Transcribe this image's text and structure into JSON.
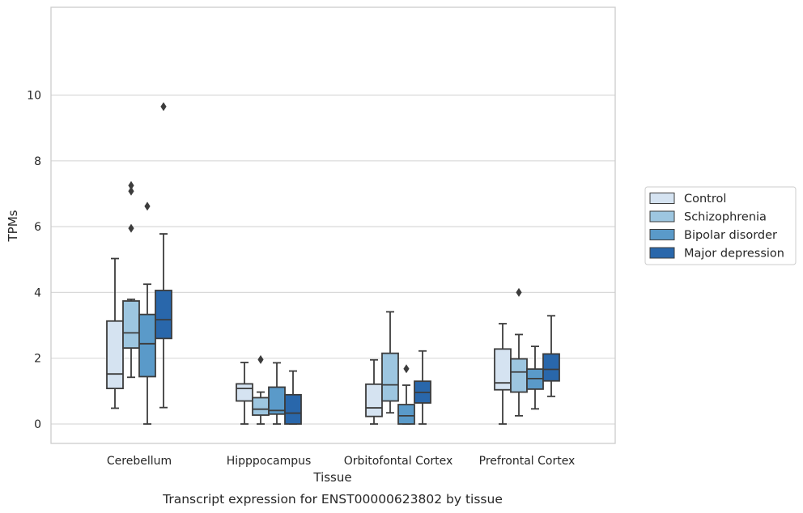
{
  "chart_data": {
    "type": "box",
    "ylabel": "TPMs",
    "xlabel": "Tissue",
    "caption": "Transcript expression for ENST00000623802 by tissue",
    "ylim": [
      -0.45,
      10.15
    ],
    "yticks": [
      "0",
      "2",
      "4",
      "6",
      "8",
      "10"
    ],
    "grid": "horizontal",
    "legend_position": "right",
    "categories": [
      "Cerebellum",
      "Hipppocampus",
      "Orbitofontal Cortex",
      "Prefrontal Cortex"
    ],
    "series": [
      {
        "name": "Control",
        "color": "#d5e3f1",
        "boxes": [
          {
            "whislo": 0.48,
            "q1": 1.08,
            "med": 1.52,
            "q3": 3.13,
            "whishi": 5.03,
            "fliers": []
          },
          {
            "whislo": 0.0,
            "q1": 0.7,
            "med": 1.08,
            "q3": 1.22,
            "whishi": 1.87,
            "fliers": []
          },
          {
            "whislo": 0.0,
            "q1": 0.23,
            "med": 0.49,
            "q3": 1.21,
            "whishi": 1.95,
            "fliers": []
          },
          {
            "whislo": 0.0,
            "q1": 1.04,
            "med": 1.25,
            "q3": 2.28,
            "whishi": 3.05,
            "fliers": []
          }
        ]
      },
      {
        "name": "Schizophrenia",
        "color": "#9dc6e0",
        "boxes": [
          {
            "whislo": 1.42,
            "q1": 2.31,
            "med": 2.77,
            "q3": 3.74,
            "whishi": 3.79,
            "fliers": [
              5.95,
              7.08,
              7.25
            ]
          },
          {
            "whislo": 0.0,
            "q1": 0.27,
            "med": 0.45,
            "q3": 0.8,
            "whishi": 0.97,
            "fliers": [
              1.96
            ]
          },
          {
            "whislo": 0.34,
            "q1": 0.7,
            "med": 1.19,
            "q3": 2.15,
            "whishi": 3.41,
            "fliers": []
          },
          {
            "whislo": 0.25,
            "q1": 0.97,
            "med": 1.58,
            "q3": 1.98,
            "whishi": 2.72,
            "fliers": [
              4.0
            ]
          }
        ]
      },
      {
        "name": "Bipolar disorder",
        "color": "#5a9ac9",
        "boxes": [
          {
            "whislo": 0.0,
            "q1": 1.44,
            "med": 2.44,
            "q3": 3.33,
            "whishi": 4.25,
            "fliers": [
              6.62
            ]
          },
          {
            "whislo": 0.0,
            "q1": 0.3,
            "med": 0.41,
            "q3": 1.12,
            "whishi": 1.86,
            "fliers": []
          },
          {
            "whislo": 0.0,
            "q1": 0.0,
            "med": 0.25,
            "q3": 0.59,
            "whishi": 1.18,
            "fliers": [
              1.68
            ]
          },
          {
            "whislo": 0.46,
            "q1": 1.06,
            "med": 1.38,
            "q3": 1.67,
            "whishi": 2.36,
            "fliers": []
          }
        ]
      },
      {
        "name": "Major depression",
        "color": "#2967ab",
        "boxes": [
          {
            "whislo": 0.5,
            "q1": 2.6,
            "med": 3.17,
            "q3": 4.06,
            "whishi": 5.78,
            "fliers": [
              9.65
            ]
          },
          {
            "whislo": 0.0,
            "q1": 0.0,
            "med": 0.33,
            "q3": 0.89,
            "whishi": 1.61,
            "fliers": []
          },
          {
            "whislo": 0.0,
            "q1": 0.64,
            "med": 0.96,
            "q3": 1.3,
            "whishi": 2.22,
            "fliers": []
          },
          {
            "whislo": 0.84,
            "q1": 1.31,
            "med": 1.66,
            "q3": 2.13,
            "whishi": 3.29,
            "fliers": []
          }
        ]
      }
    ]
  }
}
